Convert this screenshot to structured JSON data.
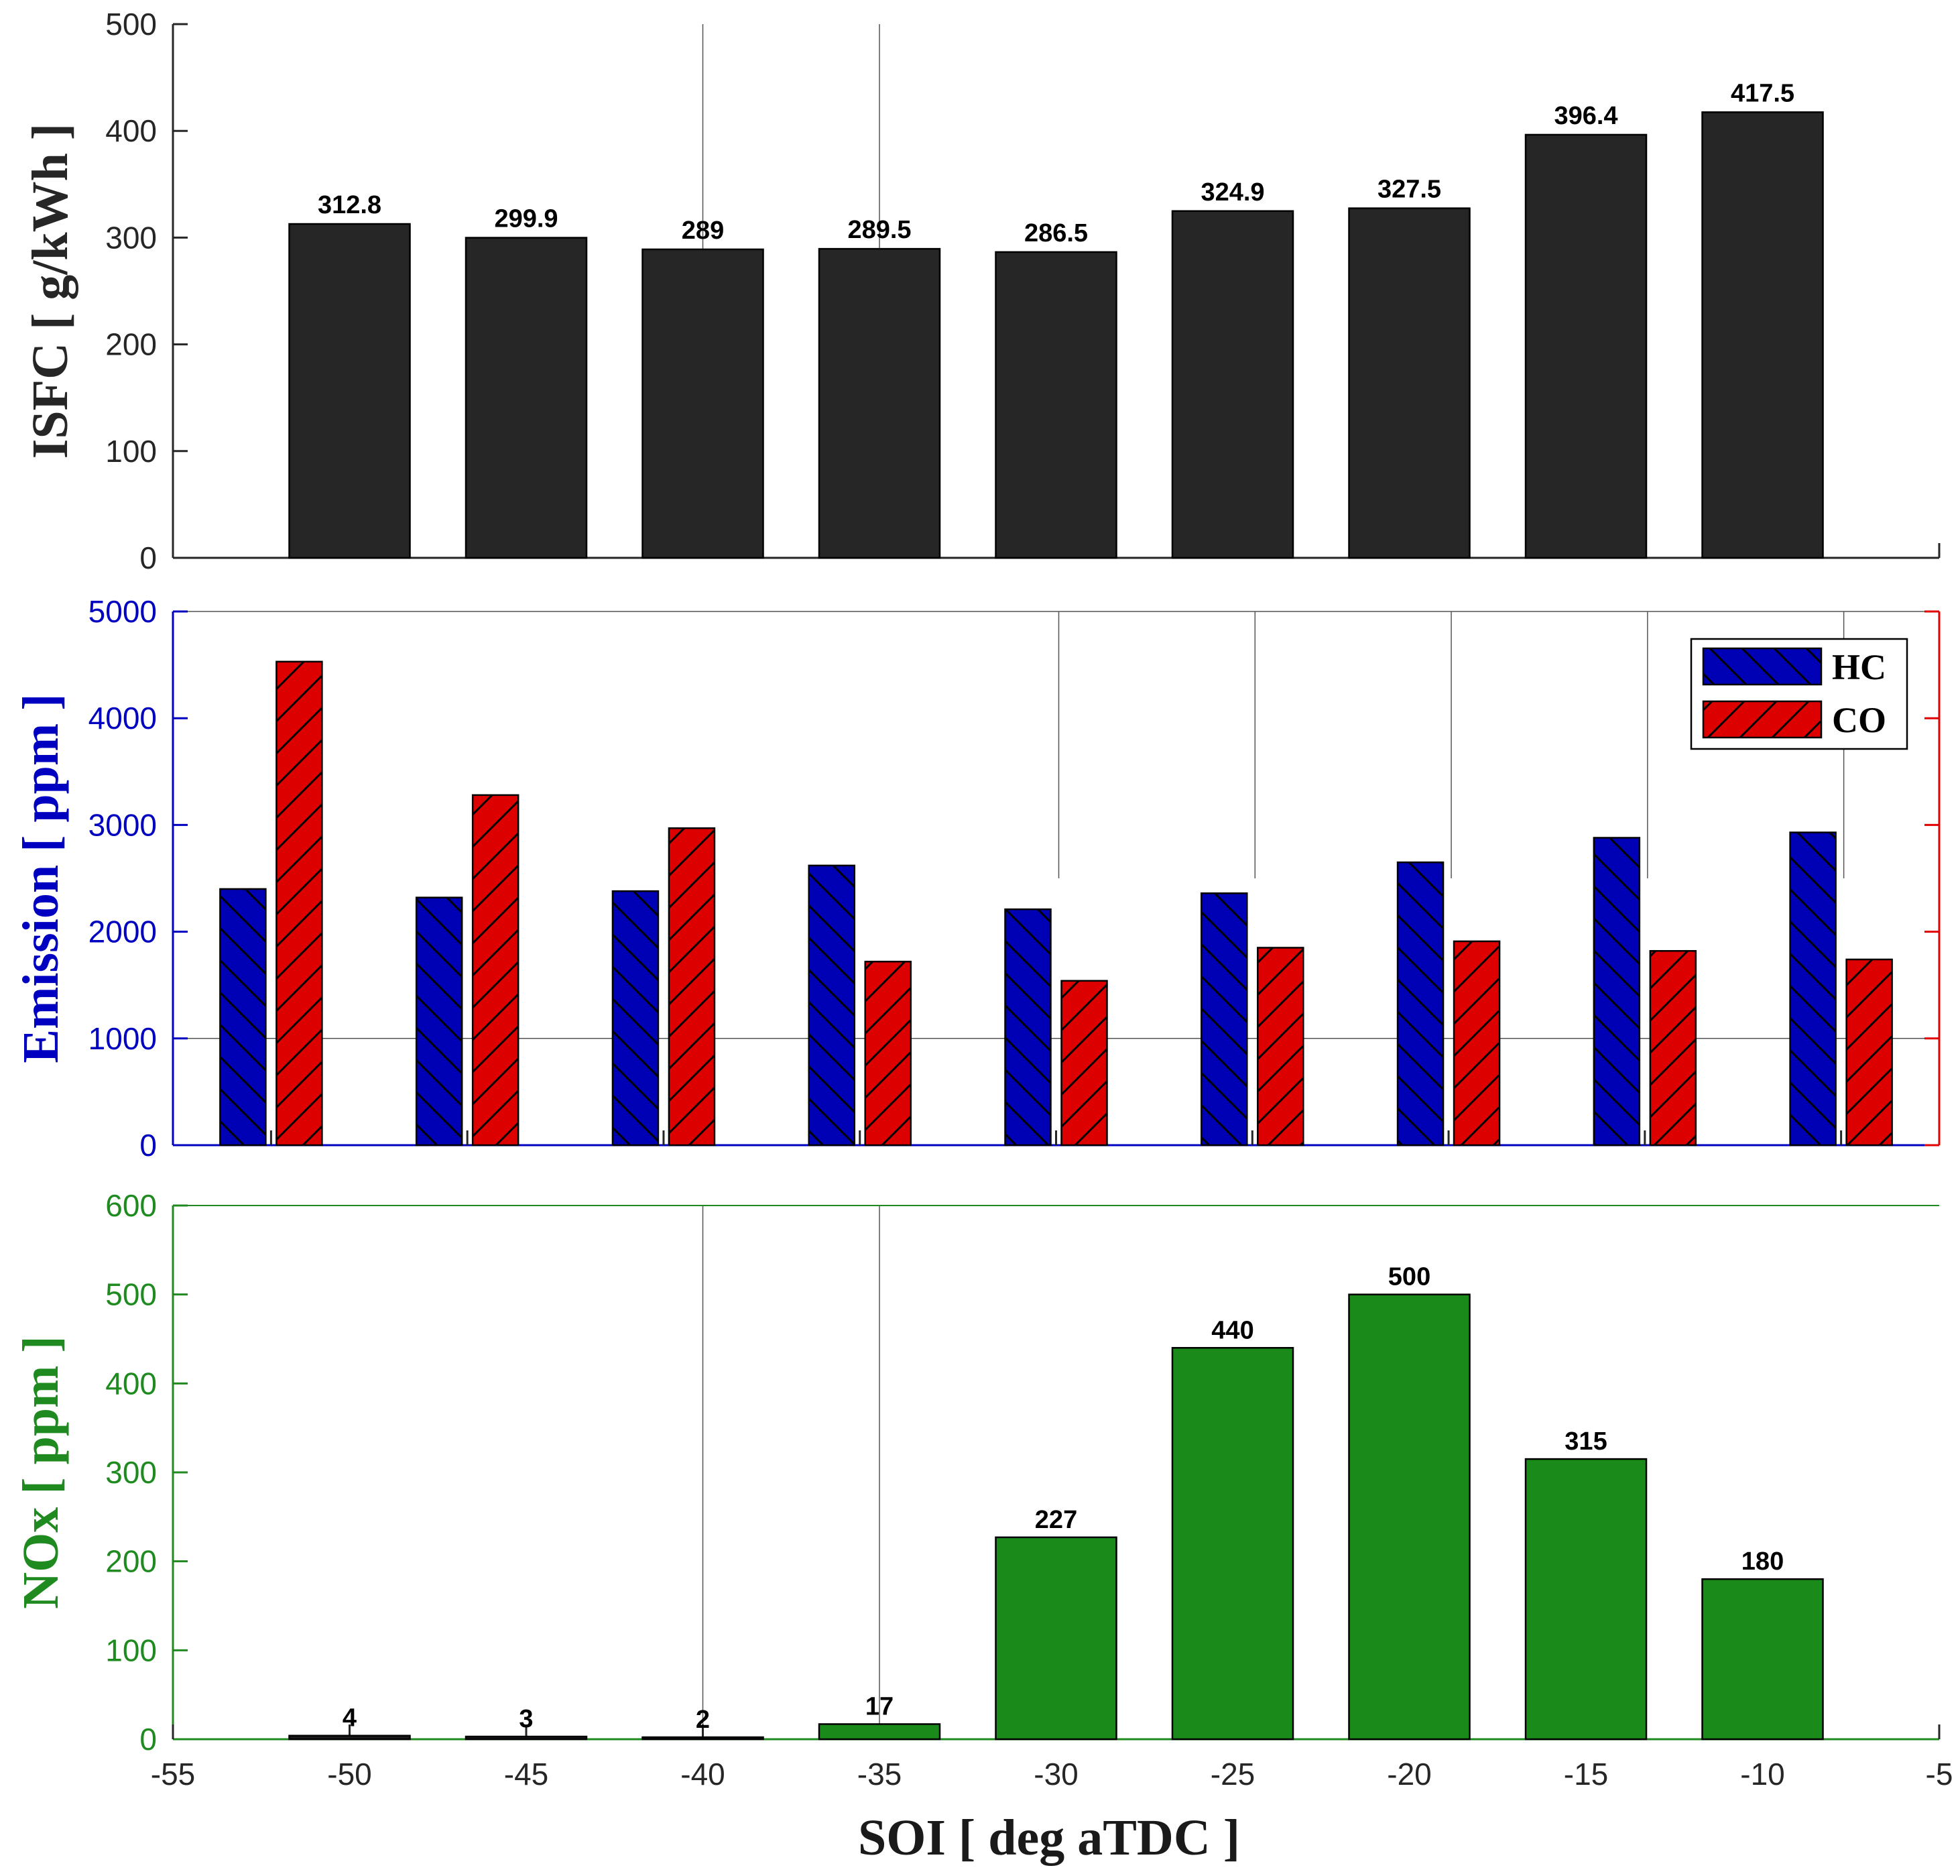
{
  "colors": {
    "isfc": "#262626",
    "hc": "#0000b4",
    "co": "#dd0000",
    "nox": "#1a8a1a",
    "nox_small": "#1a1a1a",
    "grid": "#555555",
    "blue_axis": "#0000c0",
    "red_axis": "#e00000",
    "green_axis": "#1f8a1f"
  },
  "xlabel": "SOI [ deg aTDC ]",
  "chart_data": [
    {
      "name": "isfc",
      "type": "bar",
      "ylabel": "ISFC [ g/kWh ]",
      "x": [
        -50,
        -45,
        -40,
        -35,
        -30,
        -25,
        -20,
        -15,
        -10
      ],
      "values": [
        312.8,
        299.9,
        289,
        289.5,
        286.5,
        324.9,
        327.5,
        396.4,
        417.5
      ],
      "labels": [
        "312.8",
        "299.9",
        "289",
        "289.5",
        "286.5",
        "324.9",
        "327.5",
        "396.4",
        "417.5"
      ],
      "ylim": [
        0,
        500
      ],
      "yticks": [
        "0",
        "100",
        "200",
        "300",
        "400",
        "500"
      ],
      "xlim": [
        -55,
        -5
      ],
      "grid_x": [
        -55,
        -40,
        -35
      ]
    },
    {
      "name": "emission",
      "type": "bar",
      "ylabel_parts": [
        "Emission ",
        "[ ppm ]"
      ],
      "categories": [
        -50,
        -45,
        -40,
        -35,
        -30,
        -25,
        -20,
        -15,
        -10
      ],
      "series": [
        {
          "name": "HC",
          "values": [
            2400,
            2320,
            2380,
            2620,
            2210,
            2360,
            2650,
            2880,
            2930
          ]
        },
        {
          "name": "CO",
          "values": [
            4530,
            3280,
            2970,
            1720,
            1540,
            1850,
            1910,
            1820,
            1740
          ]
        }
      ],
      "ylim": [
        0,
        5000
      ],
      "yticks": [
        "0",
        "1000",
        "2000",
        "3000",
        "4000",
        "5000"
      ],
      "legend": [
        "HC",
        "CO"
      ],
      "legend_position": "top-right"
    },
    {
      "name": "nox",
      "type": "bar",
      "ylabel": "NOx [ ppm ]",
      "x": [
        -50,
        -45,
        -40,
        -35,
        -30,
        -25,
        -20,
        -15,
        -10
      ],
      "values": [
        4,
        3,
        2,
        17,
        227,
        440,
        500,
        315,
        180
      ],
      "labels": [
        "4",
        "3",
        "2",
        "17",
        "227",
        "440",
        "500",
        "315",
        "180"
      ],
      "ylim": [
        0,
        600
      ],
      "yticks": [
        "0",
        "100",
        "200",
        "300",
        "400",
        "500",
        "600"
      ],
      "xlim": [
        -55,
        -5
      ],
      "xticks": [
        "-55",
        "-50",
        "-45",
        "-40",
        "-35",
        "-30",
        "-25",
        "-20",
        "-15",
        "-10",
        "-5"
      ],
      "grid_x": [
        -55,
        -40,
        -35
      ]
    }
  ]
}
